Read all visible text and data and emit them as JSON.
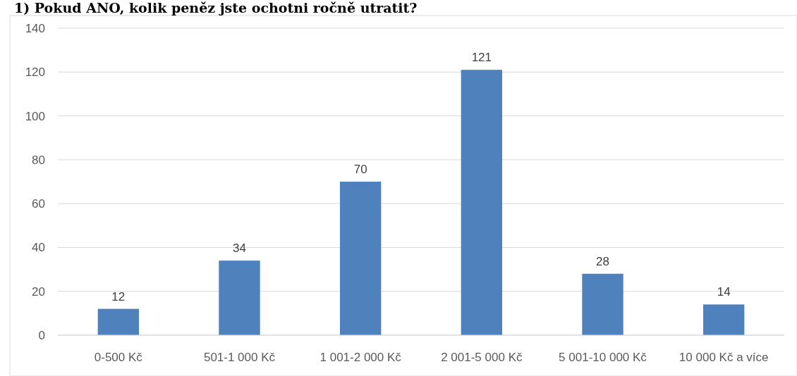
{
  "chart_data": {
    "type": "bar",
    "title": "1) Pokud ANO, kolik peněz jste ochotni ročně utratit?",
    "categories": [
      "0-500 Kč",
      "501-1 000 Kč",
      "1 001-2 000 Kč",
      "2 001-5 000 Kč",
      "5 001-10 000 Kč",
      "10 000 Kč a více"
    ],
    "values": [
      12,
      34,
      70,
      121,
      28,
      14
    ],
    "color": "#4f81bd",
    "ylim": [
      0,
      140
    ],
    "yticks": [
      0,
      20,
      40,
      60,
      80,
      100,
      120,
      140
    ],
    "grid": "y",
    "data_labels": true
  }
}
